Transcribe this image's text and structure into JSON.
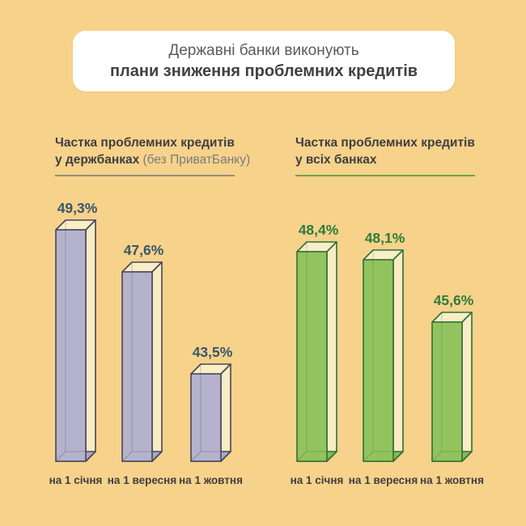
{
  "page": {
    "background": "#f7d28b"
  },
  "title": {
    "line1": "Державні банки виконують",
    "line2": "плани зниження проблемних кредитів"
  },
  "panels": {
    "left": {
      "heading_line1": "Частка проблемних кредитів",
      "heading_line2_bold": "у держбанках",
      "heading_line2_note": "(без ПриватБанку)"
    },
    "right": {
      "heading_line1": "Частка проблемних кредитів",
      "heading_line2_bold": "у всіх банках",
      "heading_line2_note": ""
    }
  },
  "chart_data": [
    {
      "type": "bar",
      "title": "Частка проблемних кредитів у держбанках (без ПриватБанку)",
      "categories": [
        "на 1 січня",
        "на 1 вересня",
        "на 1 жовтня"
      ],
      "values": [
        49.3,
        47.6,
        43.5
      ],
      "value_labels": [
        "49,3%",
        "47,6%",
        "43,5%"
      ],
      "unit": "%",
      "ylim": [
        40,
        51
      ],
      "grid": false,
      "legend": false,
      "bar_style": "3d-glass-box"
    },
    {
      "type": "bar",
      "title": "Частка проблемних кредитів у всіх банках",
      "categories": [
        "на 1 січня",
        "на 1 вересня",
        "на 1 жовтня"
      ],
      "values": [
        48.4,
        48.1,
        45.6
      ],
      "value_labels": [
        "48,4%",
        "48,1%",
        "45,6%"
      ],
      "unit": "%",
      "ylim": [
        40,
        51
      ],
      "grid": false,
      "legend": false,
      "bar_style": "3d-glass-box"
    }
  ],
  "style": {
    "left": {
      "front_fill": "#b5b2cd",
      "bottom_fill": "#aba8c6",
      "top_fill": "#faeec8",
      "side_fill": "#f9ecc4",
      "stroke": "#474656",
      "value_color": "#37566c",
      "underline_color": "#90907c"
    },
    "right": {
      "front_fill": "#93c35e",
      "bottom_fill": "#86ba52",
      "top_fill": "#faeec8",
      "side_fill": "#f9ecc4",
      "stroke": "#2f7137",
      "value_color": "#2d7c3b",
      "underline_color": "#71a347"
    },
    "xlabel_color": "#3e3e40"
  }
}
